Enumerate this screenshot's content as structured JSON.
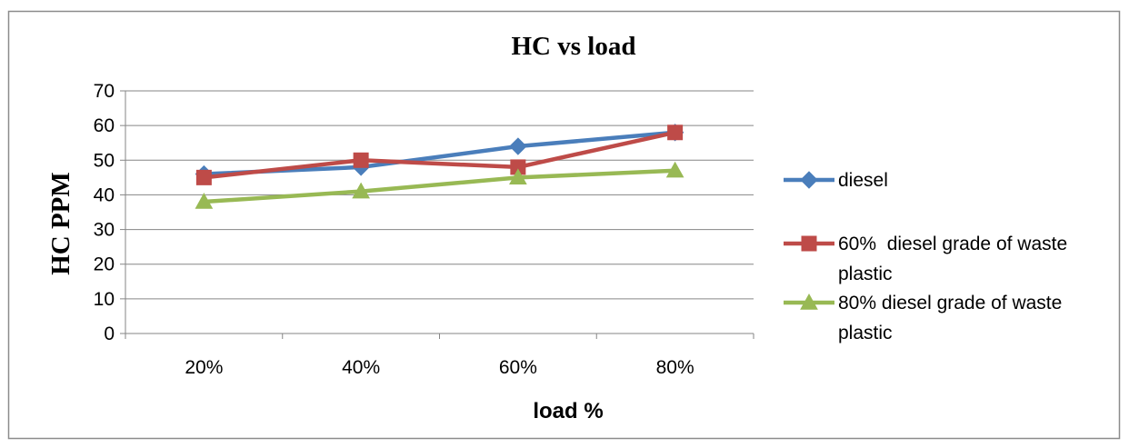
{
  "chart_data": {
    "type": "line",
    "title": "HC vs load",
    "xlabel": "load %",
    "ylabel": "HC  PPM",
    "categories": [
      "20%",
      "40%",
      "60%",
      "80%"
    ],
    "ylim": [
      0,
      70
    ],
    "yticks": [
      0,
      10,
      20,
      30,
      40,
      50,
      60,
      70
    ],
    "grid": "horizontal",
    "legend_position": "right",
    "series": [
      {
        "name": "diesel",
        "values": [
          46,
          48,
          54,
          58
        ],
        "color": "#4a7ebb",
        "marker": "diamond"
      },
      {
        "name": "60%  diesel grade of waste plastic",
        "values": [
          45,
          50,
          48,
          58
        ],
        "color": "#be4b48",
        "marker": "square"
      },
      {
        "name": "80% diesel grade of waste plastic",
        "values": [
          38,
          41,
          45,
          47
        ],
        "color": "#98b954",
        "marker": "triangle"
      }
    ]
  }
}
